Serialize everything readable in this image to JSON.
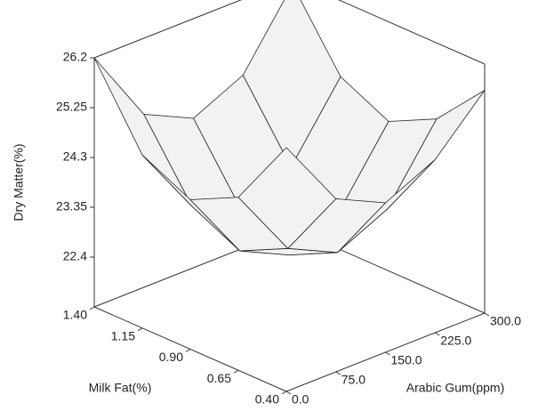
{
  "chart_data": {
    "type": "surface",
    "x_label": "Milk Fat(%)",
    "y_label": "Arabic Gum(ppm)",
    "z_label": "Dry Matter(%)",
    "x": [
      0.4,
      0.65,
      0.9,
      1.15,
      1.4
    ],
    "y": [
      0,
      75,
      150,
      225,
      300
    ],
    "z": [
      [
        26.1,
        24.75,
        24.3,
        24.75,
        25.7
      ],
      [
        24.75,
        23.4,
        22.95,
        23.4,
        24.75
      ],
      [
        24.3,
        22.95,
        22.5,
        22.95,
        24.3
      ],
      [
        24.75,
        23.4,
        22.95,
        23.4,
        24.75
      ],
      [
        26.2,
        24.75,
        24.3,
        24.75,
        26.1
      ]
    ],
    "color": "#f2f2f2",
    "xlim": [
      0.4,
      1.4
    ],
    "ylim": [
      0,
      300
    ],
    "zlim": [
      21.45,
      26.2
    ],
    "xticks": [
      {
        "value": 1.4,
        "label": "1.40"
      },
      {
        "value": 1.15,
        "label": "1.15"
      },
      {
        "value": 0.9,
        "label": "0.90"
      },
      {
        "value": 0.65,
        "label": "0.65"
      },
      {
        "value": 0.4,
        "label": "0.40"
      }
    ],
    "yticks": [
      {
        "value": 0,
        "label": "0.0"
      },
      {
        "value": 75,
        "label": "75.0"
      },
      {
        "value": 150,
        "label": "150.0"
      },
      {
        "value": 225,
        "label": "225.0"
      },
      {
        "value": 300,
        "label": "300.0"
      }
    ],
    "zticks": [
      22.4,
      23.35,
      24.3,
      25.25,
      26.2
    ]
  }
}
